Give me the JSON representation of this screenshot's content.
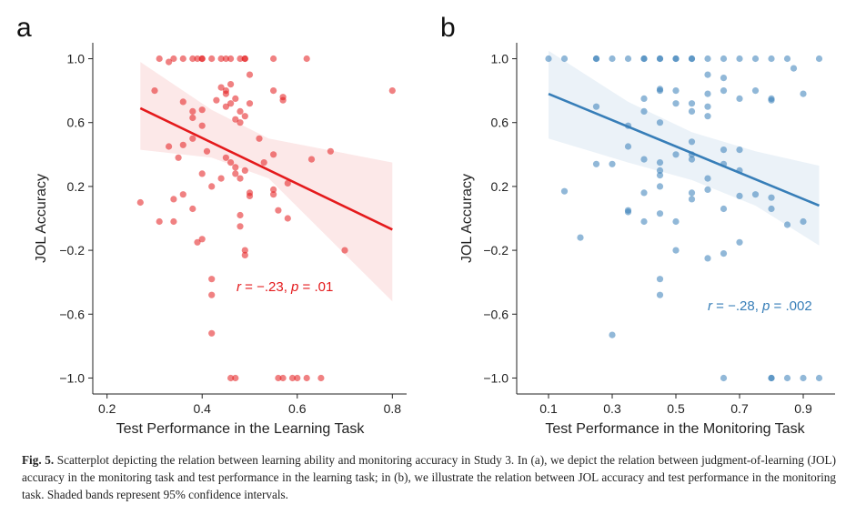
{
  "caption": {
    "label": "Fig. 5.",
    "text": "Scatterplot depicting the relation between learning ability and monitoring accuracy in Study 3. In (a), we depict the relation between judgment-of-learning (JOL) accuracy in the monitoring task and test performance in the learning task; in (b), we illustrate the relation between JOL accuracy and test performance in the monitoring task. Shaded bands represent 95% confidence intervals."
  },
  "chart_data": [
    {
      "panel": "a",
      "type": "scatter",
      "xlabel": "Test Performance in the Learning Task",
      "ylabel": "JOL Accuracy",
      "xlim": [
        0.17,
        0.83
      ],
      "ylim": [
        -1.1,
        1.1
      ],
      "xticks": [
        0.2,
        0.4,
        0.6,
        0.8
      ],
      "xtick_labels": [
        "0.2",
        "0.4",
        "0.6",
        "0.8"
      ],
      "yticks": [
        1.0,
        0.6,
        0.2,
        -0.2,
        -0.6,
        -1.0
      ],
      "ytick_labels": [
        "1.0",
        "0.6",
        "0.2",
        "−0.2",
        "−0.6",
        "−1.0"
      ],
      "color": "#e41a1c",
      "annotation": {
        "r_label": "r",
        "r_value": " = −.23, ",
        "p_label": "p",
        "p_value": " = .01",
        "x": 0.58,
        "y": -0.45
      },
      "fit": {
        "x": [
          0.27,
          0.8
        ],
        "y": [
          0.69,
          -0.07
        ]
      },
      "ci_band": {
        "x": [
          0.27,
          0.42,
          0.54,
          0.8
        ],
        "upper": [
          0.98,
          0.68,
          0.5,
          0.35
        ],
        "lower": [
          0.43,
          0.38,
          0.25,
          -0.52
        ]
      },
      "points": [
        [
          0.31,
          1.0
        ],
        [
          0.33,
          0.98
        ],
        [
          0.34,
          1.0
        ],
        [
          0.36,
          1.0
        ],
        [
          0.38,
          1.0
        ],
        [
          0.39,
          1.0
        ],
        [
          0.4,
          1.0
        ],
        [
          0.4,
          1.0
        ],
        [
          0.42,
          1.0
        ],
        [
          0.44,
          1.0
        ],
        [
          0.45,
          1.0
        ],
        [
          0.46,
          1.0
        ],
        [
          0.48,
          1.0
        ],
        [
          0.49,
          1.0
        ],
        [
          0.49,
          1.0
        ],
        [
          0.55,
          1.0
        ],
        [
          0.62,
          1.0
        ],
        [
          0.3,
          0.8
        ],
        [
          0.36,
          0.73
        ],
        [
          0.38,
          0.67
        ],
        [
          0.38,
          0.63
        ],
        [
          0.4,
          0.68
        ],
        [
          0.43,
          0.74
        ],
        [
          0.44,
          0.82
        ],
        [
          0.45,
          0.8
        ],
        [
          0.45,
          0.78
        ],
        [
          0.46,
          0.72
        ],
        [
          0.46,
          0.84
        ],
        [
          0.47,
          0.75
        ],
        [
          0.48,
          0.67
        ],
        [
          0.5,
          0.72
        ],
        [
          0.5,
          0.9
        ],
        [
          0.55,
          0.8
        ],
        [
          0.57,
          0.76
        ],
        [
          0.57,
          0.74
        ],
        [
          0.8,
          0.8
        ],
        [
          0.36,
          0.46
        ],
        [
          0.38,
          0.5
        ],
        [
          0.4,
          0.58
        ],
        [
          0.41,
          0.42
        ],
        [
          0.45,
          0.7
        ],
        [
          0.47,
          0.62
        ],
        [
          0.48,
          0.6
        ],
        [
          0.49,
          0.64
        ],
        [
          0.52,
          0.5
        ],
        [
          0.55,
          0.4
        ],
        [
          0.63,
          0.37
        ],
        [
          0.67,
          0.42
        ],
        [
          0.33,
          0.45
        ],
        [
          0.34,
          0.12
        ],
        [
          0.35,
          0.38
        ],
        [
          0.36,
          0.15
        ],
        [
          0.4,
          0.28
        ],
        [
          0.42,
          0.2
        ],
        [
          0.44,
          0.25
        ],
        [
          0.45,
          0.38
        ],
        [
          0.46,
          0.35
        ],
        [
          0.47,
          0.32
        ],
        [
          0.47,
          0.28
        ],
        [
          0.48,
          0.25
        ],
        [
          0.49,
          0.3
        ],
        [
          0.5,
          0.16
        ],
        [
          0.5,
          0.14
        ],
        [
          0.53,
          0.35
        ],
        [
          0.55,
          0.18
        ],
        [
          0.55,
          0.15
        ],
        [
          0.58,
          0.22
        ],
        [
          0.27,
          0.1
        ],
        [
          0.31,
          -0.02
        ],
        [
          0.34,
          -0.02
        ],
        [
          0.38,
          0.06
        ],
        [
          0.39,
          -0.15
        ],
        [
          0.4,
          -0.13
        ],
        [
          0.48,
          0.02
        ],
        [
          0.48,
          -0.05
        ],
        [
          0.49,
          -0.2
        ],
        [
          0.49,
          -0.23
        ],
        [
          0.56,
          0.05
        ],
        [
          0.58,
          0.0
        ],
        [
          0.7,
          -0.2
        ],
        [
          0.42,
          -0.38
        ],
        [
          0.42,
          -0.48
        ],
        [
          0.42,
          -0.72
        ],
        [
          0.46,
          -1.0
        ],
        [
          0.47,
          -1.0
        ],
        [
          0.56,
          -1.0
        ],
        [
          0.57,
          -1.0
        ],
        [
          0.59,
          -1.0
        ],
        [
          0.6,
          -1.0
        ],
        [
          0.62,
          -1.0
        ],
        [
          0.65,
          -1.0
        ]
      ]
    },
    {
      "panel": "b",
      "type": "scatter",
      "xlabel": "Test Performance in the Monitoring Task",
      "ylabel": "JOL Accuracy",
      "xlim": [
        0.0,
        1.0
      ],
      "ylim": [
        -1.1,
        1.1
      ],
      "xticks": [
        0.1,
        0.3,
        0.5,
        0.7,
        0.9
      ],
      "xtick_labels": [
        "0.1",
        "0.3",
        "0.5",
        "0.7",
        "0.9"
      ],
      "yticks": [
        1.0,
        0.6,
        0.2,
        -0.2,
        -0.6,
        -1.0
      ],
      "ytick_labels": [
        "1.0",
        "0.6",
        "0.2",
        "−0.2",
        "−0.6",
        "−1.0"
      ],
      "color": "#377eb8",
      "annotation": {
        "r_label": "r",
        "r_value": " = −.28, ",
        "p_label": "p",
        "p_value": " = .002",
        "x": 0.82,
        "y": -0.55
      },
      "fit": {
        "x": [
          0.1,
          0.95
        ],
        "y": [
          0.78,
          0.08
        ]
      },
      "ci_band": {
        "x": [
          0.1,
          0.35,
          0.55,
          0.75,
          0.95
        ],
        "upper": [
          1.05,
          0.73,
          0.54,
          0.42,
          0.33
        ],
        "lower": [
          0.5,
          0.35,
          0.24,
          0.08,
          -0.17
        ]
      },
      "points": [
        [
          0.1,
          1.0
        ],
        [
          0.15,
          1.0
        ],
        [
          0.25,
          1.0
        ],
        [
          0.25,
          1.0
        ],
        [
          0.3,
          1.0
        ],
        [
          0.35,
          1.0
        ],
        [
          0.4,
          1.0
        ],
        [
          0.4,
          1.0
        ],
        [
          0.45,
          1.0
        ],
        [
          0.45,
          1.0
        ],
        [
          0.5,
          1.0
        ],
        [
          0.5,
          1.0
        ],
        [
          0.55,
          1.0
        ],
        [
          0.55,
          1.0
        ],
        [
          0.6,
          1.0
        ],
        [
          0.65,
          1.0
        ],
        [
          0.75,
          1.0
        ],
        [
          0.8,
          1.0
        ],
        [
          0.85,
          1.0
        ],
        [
          0.95,
          1.0
        ],
        [
          0.6,
          0.9
        ],
        [
          0.65,
          0.88
        ],
        [
          0.7,
          1.0
        ],
        [
          0.87,
          0.94
        ],
        [
          0.25,
          0.7
        ],
        [
          0.4,
          0.75
        ],
        [
          0.45,
          0.8
        ],
        [
          0.45,
          0.81
        ],
        [
          0.5,
          0.8
        ],
        [
          0.5,
          0.72
        ],
        [
          0.55,
          0.72
        ],
        [
          0.55,
          0.67
        ],
        [
          0.6,
          0.78
        ],
        [
          0.6,
          0.7
        ],
        [
          0.65,
          0.8
        ],
        [
          0.7,
          0.75
        ],
        [
          0.75,
          0.8
        ],
        [
          0.8,
          0.75
        ],
        [
          0.8,
          0.74
        ],
        [
          0.9,
          0.78
        ],
        [
          0.35,
          0.58
        ],
        [
          0.4,
          0.67
        ],
        [
          0.45,
          0.6
        ],
        [
          0.55,
          0.48
        ],
        [
          0.6,
          0.64
        ],
        [
          0.65,
          0.43
        ],
        [
          0.7,
          0.43
        ],
        [
          0.25,
          0.34
        ],
        [
          0.3,
          0.34
        ],
        [
          0.35,
          0.45
        ],
        [
          0.4,
          0.37
        ],
        [
          0.45,
          0.35
        ],
        [
          0.45,
          0.3
        ],
        [
          0.45,
          0.27
        ],
        [
          0.5,
          0.4
        ],
        [
          0.55,
          0.4
        ],
        [
          0.55,
          0.37
        ],
        [
          0.6,
          0.25
        ],
        [
          0.65,
          0.34
        ],
        [
          0.7,
          0.3
        ],
        [
          0.15,
          0.17
        ],
        [
          0.4,
          0.16
        ],
        [
          0.45,
          0.2
        ],
        [
          0.55,
          0.16
        ],
        [
          0.55,
          0.12
        ],
        [
          0.6,
          0.18
        ],
        [
          0.7,
          0.14
        ],
        [
          0.75,
          0.15
        ],
        [
          0.8,
          0.13
        ],
        [
          0.2,
          -0.12
        ],
        [
          0.35,
          0.05
        ],
        [
          0.35,
          0.04
        ],
        [
          0.4,
          -0.02
        ],
        [
          0.45,
          0.03
        ],
        [
          0.5,
          -0.02
        ],
        [
          0.65,
          0.06
        ],
        [
          0.8,
          0.06
        ],
        [
          0.85,
          -0.04
        ],
        [
          0.9,
          -0.02
        ],
        [
          0.5,
          -0.2
        ],
        [
          0.6,
          -0.25
        ],
        [
          0.65,
          -0.22
        ],
        [
          0.7,
          -0.15
        ],
        [
          0.45,
          -0.38
        ],
        [
          0.45,
          -0.48
        ],
        [
          0.3,
          -0.73
        ],
        [
          0.65,
          -1.0
        ],
        [
          0.8,
          -1.0
        ],
        [
          0.8,
          -1.0
        ],
        [
          0.85,
          -1.0
        ],
        [
          0.9,
          -1.0
        ],
        [
          0.95,
          -1.0
        ]
      ]
    }
  ]
}
